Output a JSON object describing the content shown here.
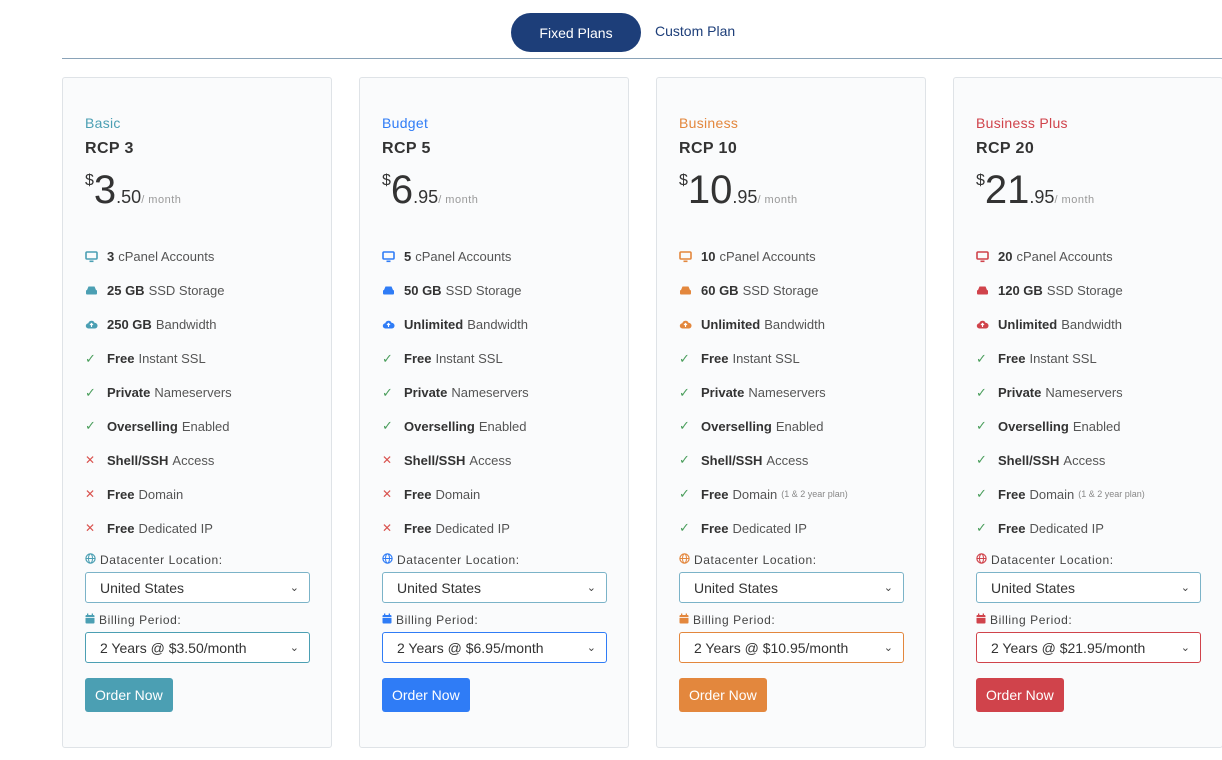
{
  "tabs": {
    "fixed": "Fixed Plans",
    "custom": "Custom Plan"
  },
  "colors": {
    "basic": "#4b9fb3",
    "budget": "#2f7cf6",
    "business": "#e3873d",
    "business_plus": "#d0434b",
    "tab_active": "#1d3e79",
    "check": "#4a9e5c",
    "cross": "#d9534f"
  },
  "labels": {
    "datacenter": "Datacenter Location:",
    "billing": "Billing Period:"
  },
  "plans": [
    {
      "tier": "Basic",
      "name": "RCP 3",
      "price": {
        "currency": "$",
        "int": "3",
        "dec": ".50",
        "per": "/ month"
      },
      "features": [
        {
          "icon": "monitor-icon",
          "bold": "3",
          "text": "cPanel Accounts",
          "note": ""
        },
        {
          "icon": "storage-icon",
          "bold": "25 GB",
          "text": "SSD Storage",
          "note": ""
        },
        {
          "icon": "cloud-icon",
          "bold": "250 GB",
          "text": "Bandwidth",
          "note": ""
        },
        {
          "icon": "check-icon",
          "bold": "Free",
          "text": "Instant SSL",
          "note": ""
        },
        {
          "icon": "check-icon",
          "bold": "Private",
          "text": "Nameservers",
          "note": ""
        },
        {
          "icon": "check-icon",
          "bold": "Overselling",
          "text": "Enabled",
          "note": ""
        },
        {
          "icon": "cross-icon",
          "bold": "Shell/SSH",
          "text": "Access",
          "note": ""
        },
        {
          "icon": "cross-icon",
          "bold": "Free",
          "text": "Domain",
          "note": ""
        },
        {
          "icon": "cross-icon",
          "bold": "Free",
          "text": "Dedicated IP",
          "note": ""
        }
      ],
      "location": "United States",
      "billing": "2 Years @ $3.50/month",
      "order": "Order Now"
    },
    {
      "tier": "Budget",
      "name": "RCP 5",
      "price": {
        "currency": "$",
        "int": "6",
        "dec": ".95",
        "per": "/ month"
      },
      "features": [
        {
          "icon": "monitor-icon",
          "bold": "5",
          "text": "cPanel Accounts",
          "note": ""
        },
        {
          "icon": "storage-icon",
          "bold": "50 GB",
          "text": "SSD Storage",
          "note": ""
        },
        {
          "icon": "cloud-icon",
          "bold": "Unlimited",
          "text": "Bandwidth",
          "note": ""
        },
        {
          "icon": "check-icon",
          "bold": "Free",
          "text": "Instant SSL",
          "note": ""
        },
        {
          "icon": "check-icon",
          "bold": "Private",
          "text": "Nameservers",
          "note": ""
        },
        {
          "icon": "check-icon",
          "bold": "Overselling",
          "text": "Enabled",
          "note": ""
        },
        {
          "icon": "cross-icon",
          "bold": "Shell/SSH",
          "text": "Access",
          "note": ""
        },
        {
          "icon": "cross-icon",
          "bold": "Free",
          "text": "Domain",
          "note": ""
        },
        {
          "icon": "cross-icon",
          "bold": "Free",
          "text": "Dedicated IP",
          "note": ""
        }
      ],
      "location": "United States",
      "billing": "2 Years @ $6.95/month",
      "order": "Order Now"
    },
    {
      "tier": "Business",
      "name": "RCP 10",
      "price": {
        "currency": "$",
        "int": "10",
        "dec": ".95",
        "per": "/ month"
      },
      "features": [
        {
          "icon": "monitor-icon",
          "bold": "10",
          "text": "cPanel Accounts",
          "note": ""
        },
        {
          "icon": "storage-icon",
          "bold": "60 GB",
          "text": "SSD Storage",
          "note": ""
        },
        {
          "icon": "cloud-icon",
          "bold": "Unlimited",
          "text": "Bandwidth",
          "note": ""
        },
        {
          "icon": "check-icon",
          "bold": "Free",
          "text": "Instant SSL",
          "note": ""
        },
        {
          "icon": "check-icon",
          "bold": "Private",
          "text": "Nameservers",
          "note": ""
        },
        {
          "icon": "check-icon",
          "bold": "Overselling",
          "text": "Enabled",
          "note": ""
        },
        {
          "icon": "check-icon",
          "bold": "Shell/SSH",
          "text": "Access",
          "note": ""
        },
        {
          "icon": "check-icon",
          "bold": "Free",
          "text": "Domain",
          "note": "(1 & 2 year plan)"
        },
        {
          "icon": "check-icon",
          "bold": "Free",
          "text": "Dedicated IP",
          "note": ""
        }
      ],
      "location": "United States",
      "billing": "2 Years @ $10.95/month",
      "order": "Order Now"
    },
    {
      "tier": "Business Plus",
      "name": "RCP 20",
      "price": {
        "currency": "$",
        "int": "21",
        "dec": ".95",
        "per": "/ month"
      },
      "features": [
        {
          "icon": "monitor-icon",
          "bold": "20",
          "text": "cPanel Accounts",
          "note": ""
        },
        {
          "icon": "storage-icon",
          "bold": "120 GB",
          "text": "SSD Storage",
          "note": ""
        },
        {
          "icon": "cloud-icon",
          "bold": "Unlimited",
          "text": "Bandwidth",
          "note": ""
        },
        {
          "icon": "check-icon",
          "bold": "Free",
          "text": "Instant SSL",
          "note": ""
        },
        {
          "icon": "check-icon",
          "bold": "Private",
          "text": "Nameservers",
          "note": ""
        },
        {
          "icon": "check-icon",
          "bold": "Overselling",
          "text": "Enabled",
          "note": ""
        },
        {
          "icon": "check-icon",
          "bold": "Shell/SSH",
          "text": "Access",
          "note": ""
        },
        {
          "icon": "check-icon",
          "bold": "Free",
          "text": "Domain",
          "note": "(1 & 2 year plan)"
        },
        {
          "icon": "check-icon",
          "bold": "Free",
          "text": "Dedicated IP",
          "note": ""
        }
      ],
      "location": "United States",
      "billing": "2 Years @ $21.95/month",
      "order": "Order Now"
    }
  ]
}
